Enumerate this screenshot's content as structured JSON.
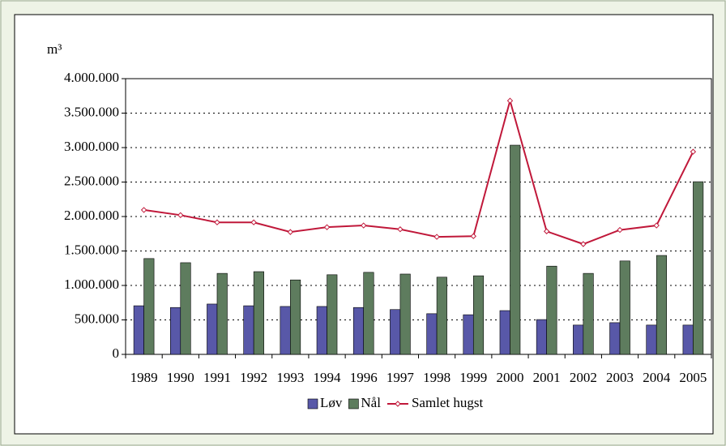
{
  "chart_data": {
    "type": "bar",
    "y_label": "m³",
    "categories": [
      "1989",
      "1990",
      "1991",
      "1992",
      "1993",
      "1994",
      "1996",
      "1997",
      "1998",
      "1999",
      "2000",
      "2001",
      "2002",
      "2003",
      "2004",
      "2005"
    ],
    "series": [
      {
        "name": "Løv",
        "color": "#5858a8",
        "values": [
          705000,
          680000,
          730000,
          705000,
          695000,
          695000,
          680000,
          650000,
          590000,
          575000,
          635000,
          505000,
          425000,
          460000,
          425000,
          425000
        ]
      },
      {
        "name": "Nål",
        "color": "#5e7c5e",
        "values": [
          1390000,
          1330000,
          1175000,
          1200000,
          1080000,
          1155000,
          1190000,
          1165000,
          1120000,
          1140000,
          3035000,
          1280000,
          1175000,
          1355000,
          1435000,
          2505000
        ]
      },
      {
        "name": "Samlet hugst",
        "type": "line",
        "color": "#c0183a",
        "values": [
          2095000,
          2020000,
          1915000,
          1915000,
          1775000,
          1845000,
          1870000,
          1815000,
          1705000,
          1715000,
          3680000,
          1785000,
          1600000,
          1805000,
          1870000,
          2940000
        ]
      }
    ],
    "ylim": [
      0,
      4000000
    ],
    "yticks": [
      0,
      {
        "value": 500000,
        "label": "500.000"
      },
      {
        "value": 1000000,
        "label": "1.000.000"
      },
      {
        "value": 1500000,
        "label": "1.500.000"
      },
      {
        "value": 2000000,
        "label": "2.000.000"
      },
      {
        "value": 2500000,
        "label": "2.500.000"
      },
      {
        "value": 3000000,
        "label": "3.000.000"
      },
      {
        "value": 3500000,
        "label": "3.500.000"
      },
      {
        "value": 4000000,
        "label": "4.000.000"
      }
    ],
    "grid": true,
    "legend": "bottom"
  }
}
